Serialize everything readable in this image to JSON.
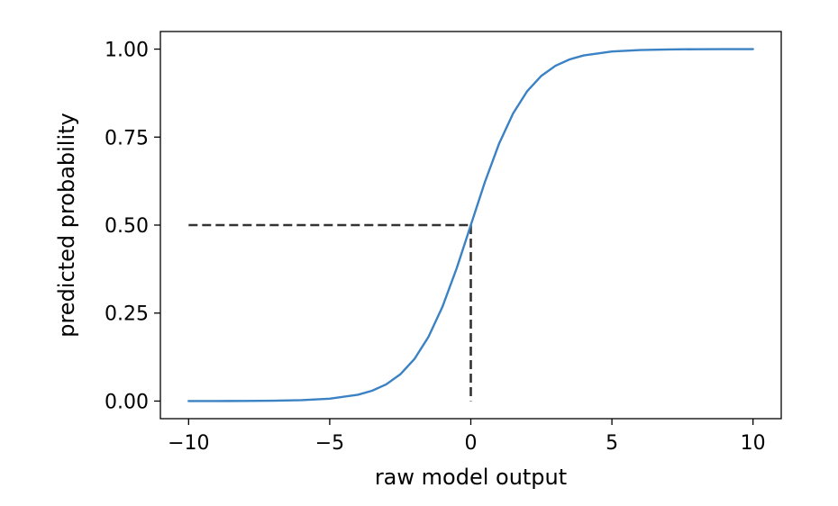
{
  "chart_data": {
    "type": "line",
    "title": "",
    "xlabel": "raw model output",
    "ylabel": "predicted probability",
    "xlim": [
      -11,
      11
    ],
    "ylim": [
      -0.05,
      1.05
    ],
    "xticks": [
      -10,
      -5,
      0,
      5,
      10
    ],
    "xtick_labels": [
      "−10",
      "−5",
      "0",
      "5",
      "10"
    ],
    "yticks": [
      0.0,
      0.25,
      0.5,
      0.75,
      1.0
    ],
    "ytick_labels": [
      "0.00",
      "0.25",
      "0.50",
      "0.75",
      "1.00"
    ],
    "grid": false,
    "series": [
      {
        "color": "#3b82c4",
        "x": [
          -10,
          -9,
          -8,
          -7,
          -6,
          -5,
          -4,
          -3.5,
          -3,
          -2.5,
          -2,
          -1.5,
          -1,
          -0.5,
          0,
          0.5,
          1,
          1.5,
          2,
          2.5,
          3,
          3.5,
          4,
          5,
          6,
          7,
          8,
          9,
          10
        ],
        "y": [
          0.0,
          0.0001,
          0.0003,
          0.0009,
          0.0025,
          0.0067,
          0.018,
          0.0293,
          0.0474,
          0.0759,
          0.1192,
          0.1824,
          0.2689,
          0.3775,
          0.5,
          0.6225,
          0.7311,
          0.8176,
          0.8808,
          0.9241,
          0.9526,
          0.9707,
          0.982,
          0.9933,
          0.9975,
          0.9991,
          0.9997,
          0.9999,
          1.0
        ]
      }
    ],
    "reference_lines": [
      {
        "style": "dashed",
        "color": "#333333",
        "x": [
          -10,
          0
        ],
        "y": [
          0.5,
          0.5
        ]
      },
      {
        "style": "dashed",
        "color": "#333333",
        "x": [
          0,
          0
        ],
        "y": [
          0.5,
          0.0
        ]
      }
    ]
  }
}
